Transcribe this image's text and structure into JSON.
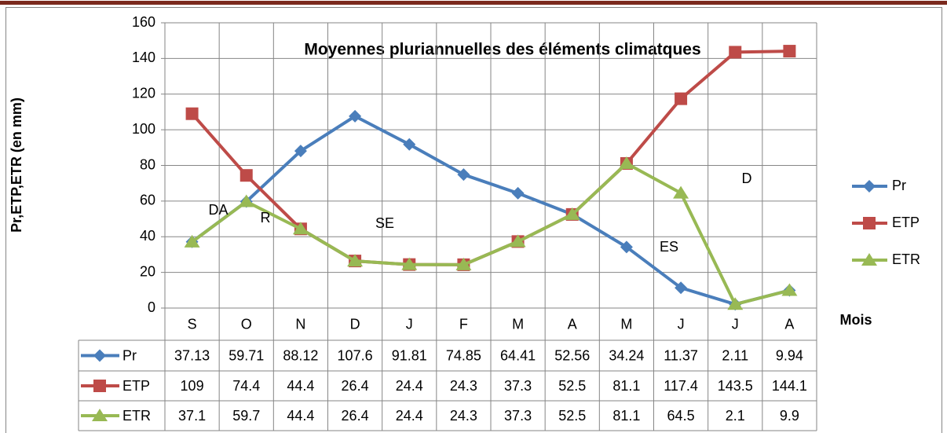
{
  "chart_data": {
    "type": "line",
    "title": "Moyennes pluriannuelles des éléments climatques",
    "ylabel": "Pr,ETP,ETR (en mm)",
    "xlabel": "Mois",
    "categories": [
      "S",
      "O",
      "N",
      "D",
      "J",
      "F",
      "M",
      "A",
      "M",
      "J",
      "J",
      "A"
    ],
    "series": [
      {
        "name": "Pr",
        "color": "#4a7ebb",
        "marker": "diamond",
        "values": [
          37.13,
          59.71,
          88.12,
          107.6,
          91.81,
          74.85,
          64.41,
          52.56,
          34.24,
          11.37,
          2.11,
          9.94
        ]
      },
      {
        "name": "ETP",
        "color": "#be4b48",
        "marker": "square",
        "values": [
          109,
          74.4,
          44.4,
          26.4,
          24.4,
          24.3,
          37.3,
          52.5,
          81.1,
          117.4,
          143.5,
          144.1
        ]
      },
      {
        "name": "ETR",
        "color": "#98b954",
        "marker": "triangle",
        "values": [
          37.1,
          59.7,
          44.4,
          26.4,
          24.4,
          24.3,
          37.3,
          52.5,
          81.1,
          64.5,
          2.1,
          9.9
        ]
      }
    ],
    "ylim": [
      0,
      160
    ],
    "yticks": [
      0,
      20,
      40,
      60,
      80,
      100,
      120,
      140,
      160
    ],
    "grid": true,
    "legend": "right",
    "data_table": true,
    "annotations": [
      "DA",
      "R",
      "SE",
      "ES",
      "D"
    ]
  }
}
